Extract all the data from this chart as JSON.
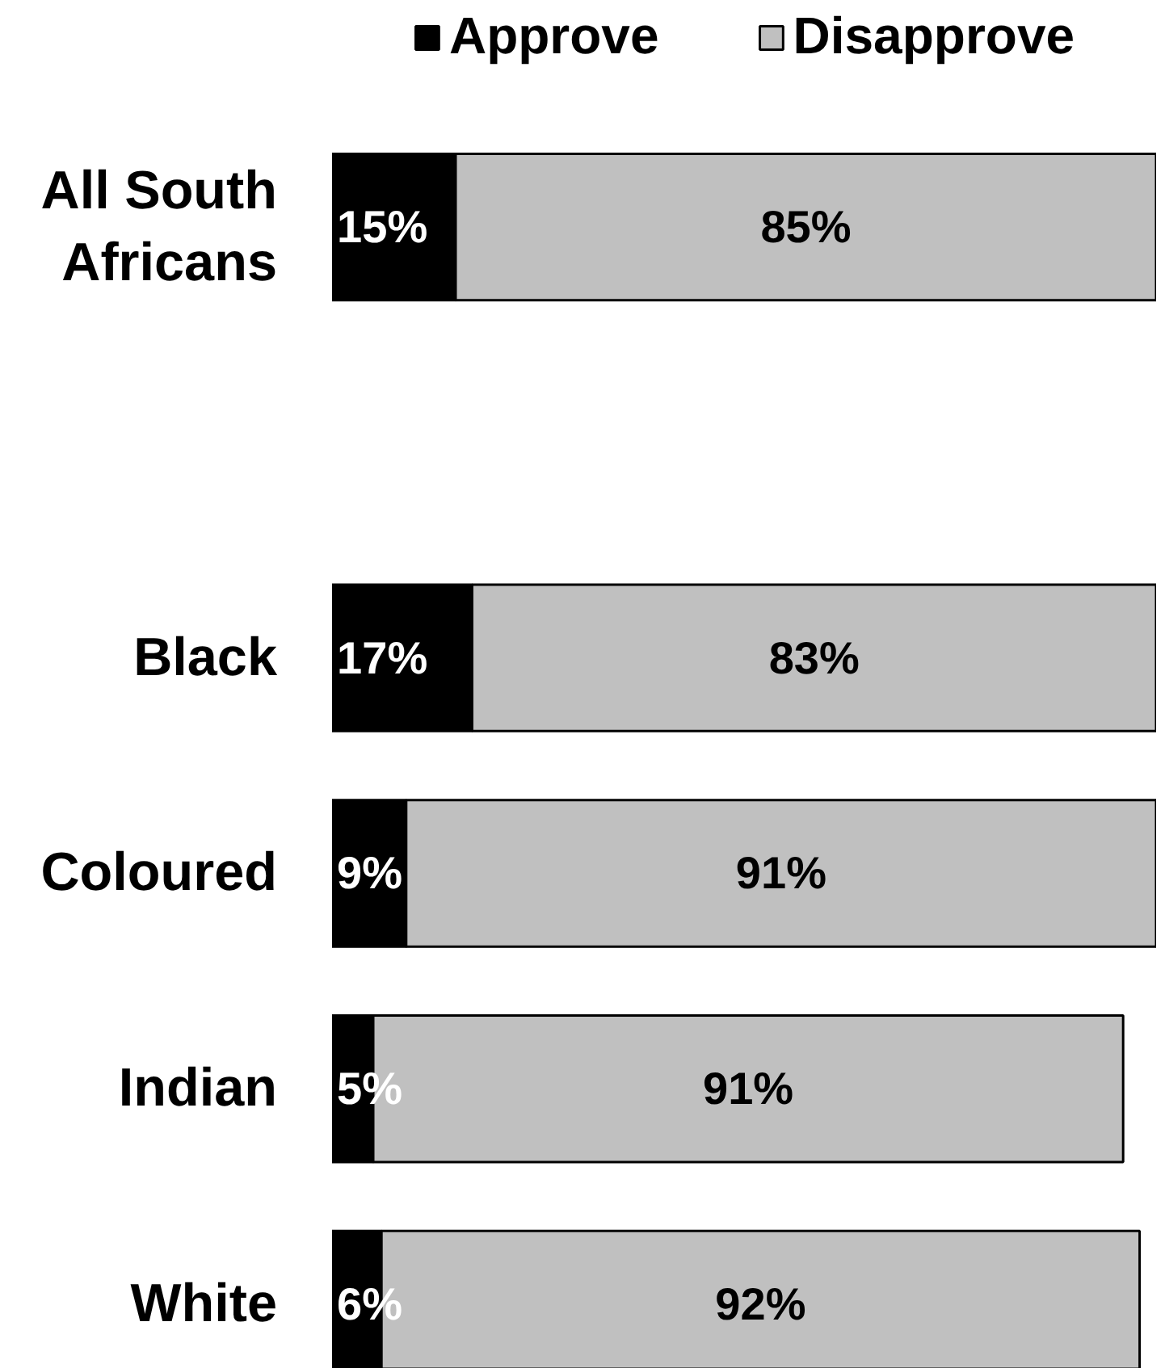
{
  "chart_data": {
    "type": "bar",
    "orientation": "horizontal",
    "stacked": true,
    "categories": [
      "All South Africans",
      null,
      "Black",
      "Coloured",
      "Indian",
      "White"
    ],
    "series": [
      {
        "name": "Approve",
        "color": "#000000",
        "values": [
          15,
          null,
          17,
          9,
          5,
          6
        ],
        "value_labels": [
          "15%",
          null,
          "17%",
          "9%",
          "5%",
          "6%"
        ]
      },
      {
        "name": "Disapprove",
        "color": "#c0c0c0",
        "values": [
          85,
          null,
          83,
          91,
          91,
          92
        ],
        "value_labels": [
          "85%",
          null,
          "83%",
          "91%",
          "91%",
          "92%"
        ]
      }
    ],
    "tick_labels": "y",
    "grid": false,
    "legend": "top"
  }
}
